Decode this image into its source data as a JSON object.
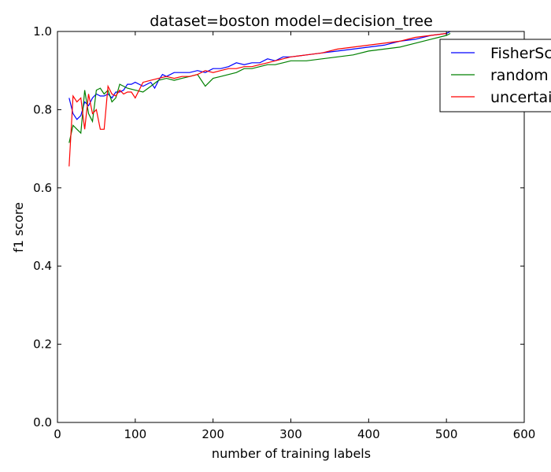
{
  "chart_data": {
    "type": "line",
    "title": "dataset=boston model=decision_tree",
    "xlabel": "number of training labels",
    "ylabel": "f1 score",
    "xlim": [
      0,
      600
    ],
    "ylim": [
      0.0,
      1.0
    ],
    "xticks": [
      0,
      100,
      200,
      300,
      400,
      500,
      600
    ],
    "yticks": [
      0.0,
      0.2,
      0.4,
      0.6,
      0.8,
      1.0
    ],
    "xtick_labels": [
      "0",
      "100",
      "200",
      "300",
      "400",
      "500",
      "600"
    ],
    "ytick_labels": [
      "0.0",
      "0.2",
      "0.4",
      "0.6",
      "0.8",
      "1.0"
    ],
    "grid": false,
    "legend": "top-right",
    "series": [
      {
        "name": "FisherScore",
        "color": "#0000ff",
        "x": [
          15,
          20,
          25,
          30,
          35,
          40,
          45,
          50,
          55,
          60,
          65,
          70,
          75,
          80,
          85,
          90,
          95,
          100,
          110,
          120,
          125,
          130,
          135,
          140,
          150,
          160,
          170,
          180,
          190,
          200,
          210,
          220,
          230,
          240,
          250,
          260,
          270,
          280,
          290,
          300,
          320,
          340,
          360,
          380,
          400,
          420,
          440,
          460,
          480,
          500,
          505
        ],
        "y": [
          0.83,
          0.79,
          0.775,
          0.785,
          0.82,
          0.81,
          0.83,
          0.84,
          0.835,
          0.835,
          0.84,
          0.83,
          0.845,
          0.845,
          0.85,
          0.865,
          0.865,
          0.87,
          0.86,
          0.87,
          0.855,
          0.875,
          0.89,
          0.885,
          0.895,
          0.895,
          0.895,
          0.9,
          0.895,
          0.905,
          0.905,
          0.91,
          0.92,
          0.915,
          0.92,
          0.92,
          0.93,
          0.925,
          0.935,
          0.935,
          0.94,
          0.945,
          0.95,
          0.955,
          0.96,
          0.965,
          0.975,
          0.98,
          0.99,
          0.995,
          1.0
        ]
      },
      {
        "name": "random",
        "color": "#008000",
        "x": [
          15,
          20,
          25,
          30,
          35,
          40,
          45,
          50,
          55,
          60,
          65,
          70,
          75,
          80,
          85,
          90,
          100,
          110,
          120,
          130,
          140,
          150,
          160,
          170,
          180,
          190,
          200,
          210,
          220,
          230,
          240,
          250,
          260,
          270,
          280,
          290,
          300,
          320,
          340,
          360,
          380,
          400,
          420,
          440,
          460,
          480,
          500,
          505
        ],
        "y": [
          0.715,
          0.76,
          0.75,
          0.74,
          0.85,
          0.79,
          0.77,
          0.85,
          0.855,
          0.84,
          0.85,
          0.82,
          0.83,
          0.865,
          0.86,
          0.855,
          0.85,
          0.845,
          0.86,
          0.875,
          0.88,
          0.875,
          0.88,
          0.885,
          0.89,
          0.86,
          0.88,
          0.885,
          0.89,
          0.895,
          0.905,
          0.905,
          0.91,
          0.915,
          0.915,
          0.92,
          0.925,
          0.925,
          0.93,
          0.935,
          0.94,
          0.95,
          0.955,
          0.96,
          0.97,
          0.98,
          0.99,
          0.995
        ]
      },
      {
        "name": "uncertainty",
        "color": "#ff0000",
        "x": [
          15,
          20,
          25,
          30,
          35,
          40,
          45,
          50,
          55,
          60,
          65,
          70,
          75,
          80,
          85,
          90,
          95,
          100,
          110,
          120,
          130,
          140,
          150,
          160,
          170,
          180,
          190,
          200,
          210,
          220,
          230,
          240,
          250,
          260,
          270,
          280,
          290,
          300,
          320,
          340,
          360,
          380,
          400,
          420,
          440,
          460,
          480,
          500
        ],
        "y": [
          0.655,
          0.835,
          0.82,
          0.83,
          0.75,
          0.84,
          0.79,
          0.8,
          0.75,
          0.75,
          0.86,
          0.84,
          0.835,
          0.85,
          0.84,
          0.845,
          0.845,
          0.83,
          0.87,
          0.875,
          0.88,
          0.885,
          0.88,
          0.885,
          0.885,
          0.89,
          0.9,
          0.895,
          0.9,
          0.905,
          0.905,
          0.91,
          0.91,
          0.915,
          0.92,
          0.925,
          0.93,
          0.935,
          0.94,
          0.945,
          0.955,
          0.96,
          0.965,
          0.97,
          0.975,
          0.985,
          0.99,
          0.995
        ]
      }
    ]
  }
}
